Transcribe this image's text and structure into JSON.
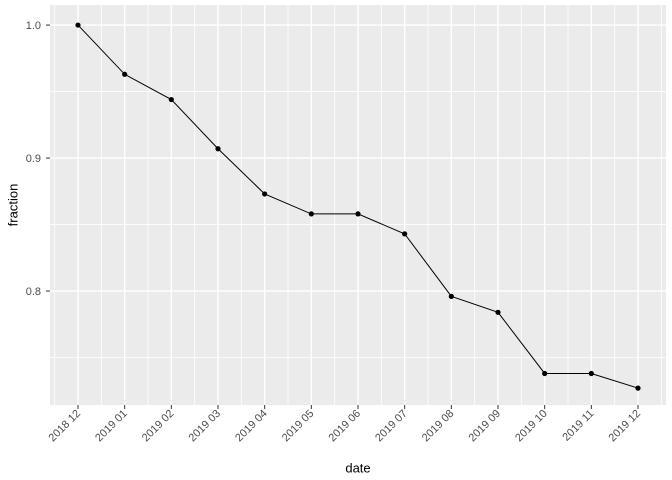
{
  "chart_data": {
    "type": "line",
    "title": "",
    "xlabel": "date",
    "ylabel": "fraction",
    "x_tick_labels": [
      "2018 12",
      "2019 01",
      "2019 02",
      "2019 03",
      "2019 04",
      "2019 05",
      "2019 06",
      "2019 07",
      "2019 08",
      "2019 09",
      "2019 10",
      "2019 11",
      "2019 12"
    ],
    "series": [
      {
        "name": "fraction",
        "values": [
          1.0,
          0.963,
          0.944,
          0.907,
          0.873,
          0.858,
          0.858,
          0.843,
          0.796,
          0.784,
          0.738,
          0.738,
          0.727
        ]
      }
    ],
    "y_ticks": [
      1.0,
      0.9,
      0.8
    ],
    "y_tick_labels": [
      "1.0",
      "0.9",
      "0.8"
    ],
    "y_minor_ticks": [
      0.95,
      0.85,
      0.75
    ],
    "ylim": [
      0.7143,
      1.0151
    ],
    "grid": "major+minor",
    "legend_position": "none",
    "marker": "point",
    "colors": {
      "page_bg": "#ffffff",
      "panel_bg": "#ebebeb",
      "grid": "#ffffff",
      "line": "#000000",
      "point": "#000000",
      "tick_mark": "#333333",
      "tick_text": "#4d4d4d",
      "axis_title": "#000000"
    }
  }
}
